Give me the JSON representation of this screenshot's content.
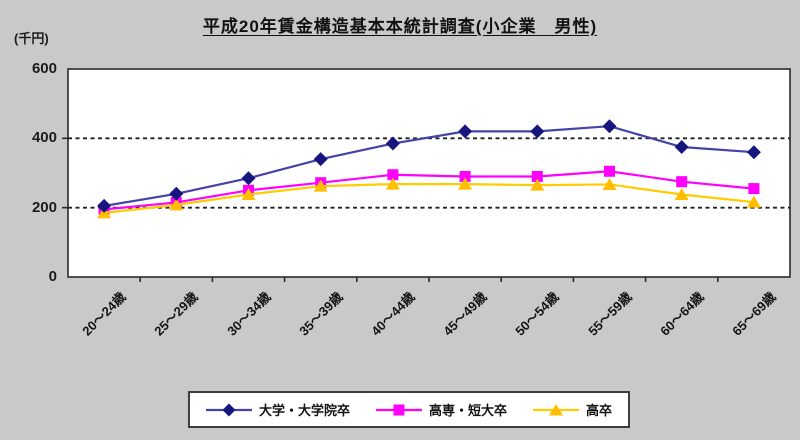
{
  "title": "平成20年賃金構造基本本統計調査(小企業　男性)",
  "y_axis_unit": "(千円)",
  "chart_data": {
    "type": "line",
    "categories": [
      "20～24歳",
      "25～29歳",
      "30～34歳",
      "35～39歳",
      "40～44歳",
      "45～49歳",
      "50～54歳",
      "55～59歳",
      "60～64歳",
      "65～69歳"
    ],
    "series": [
      {
        "name": "大学・大学院卒",
        "marker": "diamond",
        "line_color": "#4343a8",
        "marker_color": "#16167e",
        "values": [
          205,
          240,
          285,
          340,
          385,
          420,
          420,
          435,
          375,
          360
        ]
      },
      {
        "name": "高専・短大卒",
        "marker": "square",
        "line_color": "#ff00ff",
        "marker_color": "#ff00ff",
        "values": [
          195,
          215,
          250,
          272,
          295,
          290,
          290,
          305,
          275,
          255
        ]
      },
      {
        "name": "高卒",
        "marker": "triangle",
        "line_color": "#ffcc00",
        "marker_color": "#ffbf00",
        "values": [
          185,
          208,
          238,
          262,
          268,
          268,
          265,
          267,
          238,
          216
        ]
      }
    ],
    "ylim": [
      0,
      600
    ],
    "yticks": [
      0,
      200,
      400,
      600
    ],
    "gridlines": [
      200,
      400
    ],
    "grid_style": "dashed",
    "legend_position": "bottom",
    "plot_background": "#ffffff",
    "page_background": "#c9c9c9",
    "grid_color": "#222222",
    "axis_color": "#2a2a2a"
  }
}
